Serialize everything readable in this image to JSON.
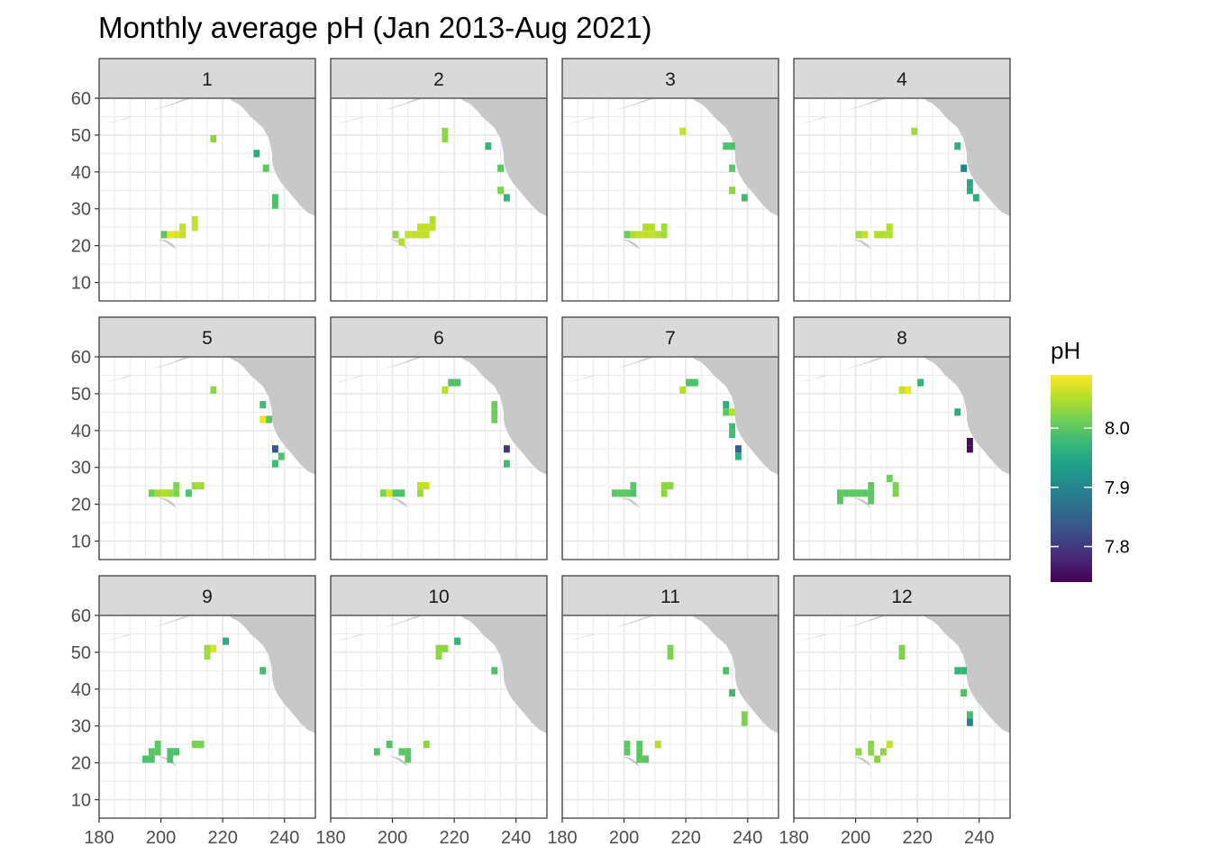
{
  "chart_data": {
    "type": "heatmap",
    "title": "Monthly average pH (Jan 2013-Aug 2021)",
    "xlabel": "",
    "ylabel": "",
    "xlim": [
      180,
      250
    ],
    "ylim": [
      5,
      60
    ],
    "x_ticks": [
      180,
      200,
      220,
      240
    ],
    "y_ticks": [
      10,
      20,
      30,
      40,
      50,
      60
    ],
    "cell_size_deg": 2,
    "grid": true,
    "facet_by": "month",
    "legend": {
      "title": "pH",
      "position": "right",
      "ticks": [
        8.0,
        7.9,
        7.8
      ],
      "range": [
        7.74,
        8.09
      ],
      "palette": "viridis"
    },
    "land_color": "#c8c8c8",
    "panels": [
      {
        "label": "1",
        "cells": [
          [
            217,
            49,
            8.03
          ],
          [
            231,
            45,
            7.95
          ],
          [
            234,
            41,
            8.0
          ],
          [
            237,
            33,
            7.99
          ],
          [
            237,
            31,
            7.99
          ],
          [
            211,
            27,
            8.06
          ],
          [
            211,
            25,
            8.06
          ],
          [
            207,
            25,
            8.06
          ],
          [
            201,
            23,
            8.0
          ],
          [
            203,
            23,
            8.08
          ],
          [
            205,
            23,
            8.07
          ],
          [
            207,
            23,
            8.06
          ]
        ]
      },
      {
        "label": "2",
        "cells": [
          [
            217,
            51,
            8.03
          ],
          [
            217,
            49,
            8.03
          ],
          [
            231,
            47,
            7.97
          ],
          [
            235,
            41,
            8.0
          ],
          [
            235,
            35,
            8.02
          ],
          [
            237,
            33,
            7.97
          ],
          [
            213,
            27,
            8.05
          ],
          [
            209,
            25,
            8.06
          ],
          [
            211,
            25,
            8.06
          ],
          [
            213,
            25,
            8.06
          ],
          [
            201,
            23,
            8.03
          ],
          [
            205,
            23,
            8.06
          ],
          [
            207,
            23,
            8.06
          ],
          [
            209,
            23,
            8.06
          ],
          [
            211,
            23,
            8.06
          ],
          [
            203,
            21,
            8.05
          ]
        ]
      },
      {
        "label": "3",
        "cells": [
          [
            219,
            51,
            8.06
          ],
          [
            233,
            47,
            7.99
          ],
          [
            235,
            47,
            7.99
          ],
          [
            235,
            41,
            8.0
          ],
          [
            235,
            35,
            8.03
          ],
          [
            239,
            33,
            7.98
          ],
          [
            207,
            25,
            8.05
          ],
          [
            209,
            25,
            8.05
          ],
          [
            213,
            25,
            8.04
          ],
          [
            201,
            23,
            8.01
          ],
          [
            203,
            23,
            8.05
          ],
          [
            205,
            23,
            8.06
          ],
          [
            207,
            23,
            8.06
          ],
          [
            209,
            23,
            8.06
          ],
          [
            211,
            23,
            8.05
          ],
          [
            213,
            23,
            8.04
          ]
        ]
      },
      {
        "label": "4",
        "cells": [
          [
            219,
            51,
            8.04
          ],
          [
            233,
            47,
            7.96
          ],
          [
            235,
            41,
            7.9
          ],
          [
            237,
            37,
            7.95
          ],
          [
            237,
            35,
            7.95
          ],
          [
            239,
            33,
            7.96
          ],
          [
            211,
            25,
            8.05
          ],
          [
            201,
            23,
            8.04
          ],
          [
            203,
            23,
            8.06
          ],
          [
            207,
            23,
            8.05
          ],
          [
            209,
            23,
            8.05
          ],
          [
            211,
            23,
            8.05
          ]
        ]
      },
      {
        "label": "5",
        "cells": [
          [
            217,
            51,
            8.03
          ],
          [
            233,
            47,
            7.98
          ],
          [
            233,
            43,
            8.08
          ],
          [
            235,
            43,
            8.0
          ],
          [
            237,
            35,
            7.83
          ],
          [
            239,
            33,
            7.99
          ],
          [
            237,
            31,
            7.98
          ],
          [
            205,
            25,
            8.02
          ],
          [
            211,
            25,
            8.04
          ],
          [
            213,
            25,
            8.04
          ],
          [
            197,
            23,
            8.01
          ],
          [
            199,
            23,
            8.04
          ],
          [
            201,
            23,
            8.05
          ],
          [
            203,
            23,
            8.04
          ],
          [
            205,
            23,
            8.02
          ],
          [
            209,
            23,
            7.99
          ]
        ]
      },
      {
        "label": "6",
        "cells": [
          [
            219,
            53,
            7.99
          ],
          [
            221,
            53,
            7.99
          ],
          [
            217,
            51,
            8.05
          ],
          [
            233,
            47,
            8.01
          ],
          [
            233,
            45,
            8.01
          ],
          [
            233,
            43,
            8.01
          ],
          [
            237,
            35,
            7.8
          ],
          [
            237,
            31,
            7.98
          ],
          [
            209,
            25,
            8.06
          ],
          [
            211,
            25,
            8.06
          ],
          [
            197,
            23,
            8.02
          ],
          [
            199,
            23,
            8.07
          ],
          [
            201,
            23,
            7.99
          ],
          [
            203,
            23,
            7.99
          ],
          [
            209,
            23,
            8.04
          ]
        ]
      },
      {
        "label": "7",
        "cells": [
          [
            221,
            53,
            7.99
          ],
          [
            223,
            53,
            7.99
          ],
          [
            219,
            51,
            8.05
          ],
          [
            233,
            47,
            7.96
          ],
          [
            233,
            45,
            8.0
          ],
          [
            235,
            45,
            8.05
          ],
          [
            235,
            41,
            7.98
          ],
          [
            235,
            39,
            7.98
          ],
          [
            237,
            35,
            7.84
          ],
          [
            237,
            33,
            7.96
          ],
          [
            203,
            25,
            8.0
          ],
          [
            213,
            25,
            8.03
          ],
          [
            215,
            25,
            8.03
          ],
          [
            197,
            23,
            8.0
          ],
          [
            199,
            23,
            8.0
          ],
          [
            201,
            23,
            8.0
          ],
          [
            203,
            23,
            7.99
          ],
          [
            213,
            23,
            8.03
          ]
        ]
      },
      {
        "label": "8",
        "cells": [
          [
            221,
            53,
            7.97
          ],
          [
            215,
            51,
            8.06
          ],
          [
            217,
            51,
            8.08
          ],
          [
            233,
            45,
            7.96
          ],
          [
            237,
            37,
            7.75
          ],
          [
            237,
            35,
            7.75
          ],
          [
            211,
            27,
            8.01
          ],
          [
            213,
            25,
            8.02
          ],
          [
            205,
            25,
            8.0
          ],
          [
            213,
            23,
            8.02
          ],
          [
            195,
            23,
            8.0
          ],
          [
            197,
            23,
            8.0
          ],
          [
            199,
            23,
            8.0
          ],
          [
            201,
            23,
            8.0
          ],
          [
            203,
            23,
            8.0
          ],
          [
            205,
            23,
            8.0
          ],
          [
            195,
            21,
            8.0
          ],
          [
            205,
            21,
            8.0
          ]
        ]
      },
      {
        "label": "9",
        "cells": [
          [
            221,
            53,
            7.96
          ],
          [
            215,
            51,
            8.04
          ],
          [
            217,
            51,
            8.07
          ],
          [
            215,
            49,
            8.04
          ],
          [
            233,
            45,
            7.98
          ],
          [
            211,
            25,
            8.02
          ],
          [
            213,
            25,
            8.02
          ],
          [
            199,
            25,
            8.0
          ],
          [
            197,
            23,
            8.0
          ],
          [
            199,
            23,
            8.0
          ],
          [
            203,
            23,
            7.99
          ],
          [
            205,
            23,
            7.99
          ],
          [
            195,
            21,
            7.99
          ],
          [
            197,
            21,
            7.99
          ],
          [
            203,
            21,
            7.99
          ]
        ]
      },
      {
        "label": "10",
        "cells": [
          [
            221,
            53,
            7.97
          ],
          [
            215,
            51,
            8.03
          ],
          [
            217,
            51,
            8.03
          ],
          [
            215,
            49,
            8.03
          ],
          [
            233,
            45,
            7.99
          ],
          [
            199,
            25,
            7.99
          ],
          [
            211,
            25,
            8.03
          ],
          [
            195,
            23,
            7.99
          ],
          [
            203,
            23,
            8.0
          ],
          [
            205,
            23,
            8.0
          ],
          [
            205,
            21,
            8.0
          ]
        ]
      },
      {
        "label": "11",
        "cells": [
          [
            215,
            51,
            8.02
          ],
          [
            215,
            49,
            8.02
          ],
          [
            233,
            45,
            7.99
          ],
          [
            235,
            39,
            7.98
          ],
          [
            239,
            33,
            8.02
          ],
          [
            239,
            31,
            8.02
          ],
          [
            201,
            25,
            8.0
          ],
          [
            205,
            25,
            8.0
          ],
          [
            211,
            25,
            8.05
          ],
          [
            201,
            23,
            8.0
          ],
          [
            205,
            23,
            8.0
          ],
          [
            205,
            21,
            8.0
          ],
          [
            207,
            21,
            8.0
          ]
        ]
      },
      {
        "label": "12",
        "cells": [
          [
            215,
            51,
            8.02
          ],
          [
            215,
            49,
            8.02
          ],
          [
            233,
            45,
            7.97
          ],
          [
            235,
            45,
            7.97
          ],
          [
            235,
            39,
            7.99
          ],
          [
            237,
            33,
            7.98
          ],
          [
            237,
            31,
            7.9
          ],
          [
            205,
            25,
            8.03
          ],
          [
            211,
            25,
            8.06
          ],
          [
            201,
            23,
            8.03
          ],
          [
            205,
            23,
            8.03
          ],
          [
            209,
            23,
            8.03
          ],
          [
            207,
            21,
            8.03
          ]
        ]
      }
    ]
  }
}
